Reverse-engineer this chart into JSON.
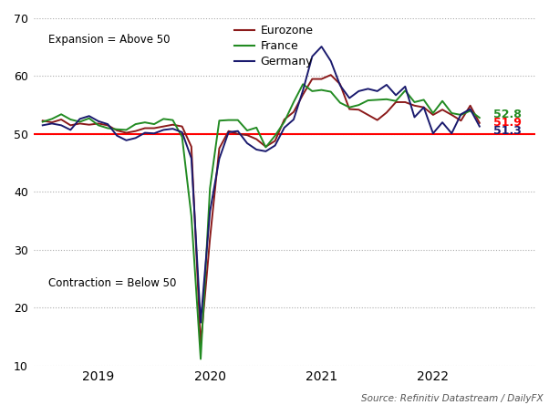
{
  "source": "Source: Refinitiv Datastream / DailyFX",
  "expansion_label": "Expansion = Above 50",
  "contraction_label": "Contraction = Below 50",
  "threshold": 50,
  "ylim": [
    10,
    70
  ],
  "yticks": [
    10,
    20,
    30,
    40,
    50,
    60,
    70
  ],
  "colors": {
    "eurozone": "#8B1A1A",
    "france": "#228B22",
    "germany": "#1a1a6e",
    "threshold_line": "#FF0000"
  },
  "end_labels": {
    "france_val": "52.8",
    "eurozone_val": "51.9",
    "germany_val": "51.3",
    "france_y": 53.4,
    "eurozone_y": 51.9,
    "germany_y": 50.5
  },
  "legend": {
    "eurozone": "Eurozone",
    "france": "France",
    "germany": "Germany"
  },
  "x_tick_positions": [
    6,
    18,
    30,
    42
  ],
  "x_labels": [
    "2019",
    "2020",
    "2021",
    "2022"
  ],
  "n_points": 48,
  "eurozone": [
    52.3,
    52.0,
    52.5,
    51.5,
    51.8,
    51.6,
    51.8,
    51.5,
    50.6,
    50.2,
    50.5,
    51.0,
    51.0,
    51.3,
    51.6,
    51.3,
    47.8,
    13.6,
    31.9,
    47.5,
    50.5,
    50.0,
    49.8,
    49.1,
    47.8,
    48.8,
    52.5,
    53.8,
    56.8,
    59.5,
    59.5,
    60.2,
    58.6,
    54.3,
    54.2,
    53.3,
    52.4,
    53.7,
    55.5,
    55.5,
    54.9,
    54.6,
    53.3,
    54.2,
    53.3,
    52.3,
    54.9,
    51.9
  ],
  "france": [
    52.1,
    52.6,
    53.4,
    52.5,
    52.1,
    52.7,
    51.5,
    51.0,
    50.8,
    50.7,
    51.7,
    52.0,
    51.7,
    52.6,
    52.4,
    49.5,
    35.8,
    11.1,
    40.6,
    52.3,
    52.4,
    52.4,
    50.6,
    51.1,
    47.7,
    49.7,
    52.1,
    55.5,
    58.6,
    57.4,
    57.6,
    57.3,
    55.4,
    54.6,
    55.0,
    55.8,
    55.9,
    56.0,
    55.7,
    57.5,
    55.5,
    55.9,
    53.6,
    55.7,
    53.6,
    53.3,
    54.0,
    52.8
  ],
  "germany": [
    51.5,
    51.8,
    51.5,
    50.7,
    52.6,
    53.1,
    52.2,
    51.7,
    49.7,
    48.9,
    49.3,
    50.2,
    50.1,
    50.7,
    50.9,
    50.3,
    45.8,
    17.4,
    36.6,
    45.7,
    50.3,
    50.5,
    48.4,
    47.3,
    47.0,
    48.0,
    51.1,
    52.5,
    57.5,
    63.4,
    65.1,
    62.6,
    58.4,
    56.2,
    57.4,
    57.8,
    57.4,
    58.5,
    56.7,
    58.2,
    52.9,
    54.6,
    50.1,
    52.0,
    50.1,
    53.4,
    54.3,
    51.3
  ]
}
